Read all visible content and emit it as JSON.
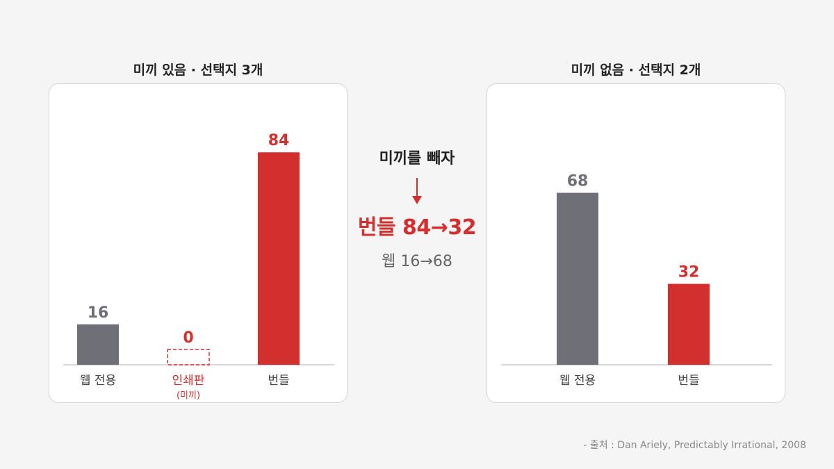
{
  "colors": {
    "gray": "#6f6f78",
    "red": "#d32f2f",
    "axis": "#c9c9c9",
    "text_dark": "#444444"
  },
  "chart_data": [
    {
      "type": "bar",
      "title": "미끼 있음 · 선택지 3개",
      "categories": [
        "웹 전용",
        "인쇄판",
        "번들"
      ],
      "category_notes": [
        "",
        "(미끼)",
        ""
      ],
      "values": [
        16,
        0,
        84
      ],
      "bar_colors": [
        "gray",
        "red-dashed",
        "red"
      ],
      "label_colors": [
        "gray",
        "red",
        "red"
      ],
      "ylim": [
        0,
        100
      ],
      "grid": false
    },
    {
      "type": "bar",
      "title": "미끼 없음 · 선택지 2개",
      "categories": [
        "웹 전용",
        "번들"
      ],
      "values": [
        68,
        32
      ],
      "bar_colors": [
        "gray",
        "red"
      ],
      "label_colors": [
        "gray",
        "red"
      ],
      "ylim": [
        0,
        100
      ],
      "grid": false
    }
  ],
  "middle": {
    "heading": "미끼를 빼자",
    "highlight": "번들 84→32",
    "sub": "웹 16→68"
  },
  "source": "- 출처 : Dan Ariely, Predictably Irrational, 2008"
}
